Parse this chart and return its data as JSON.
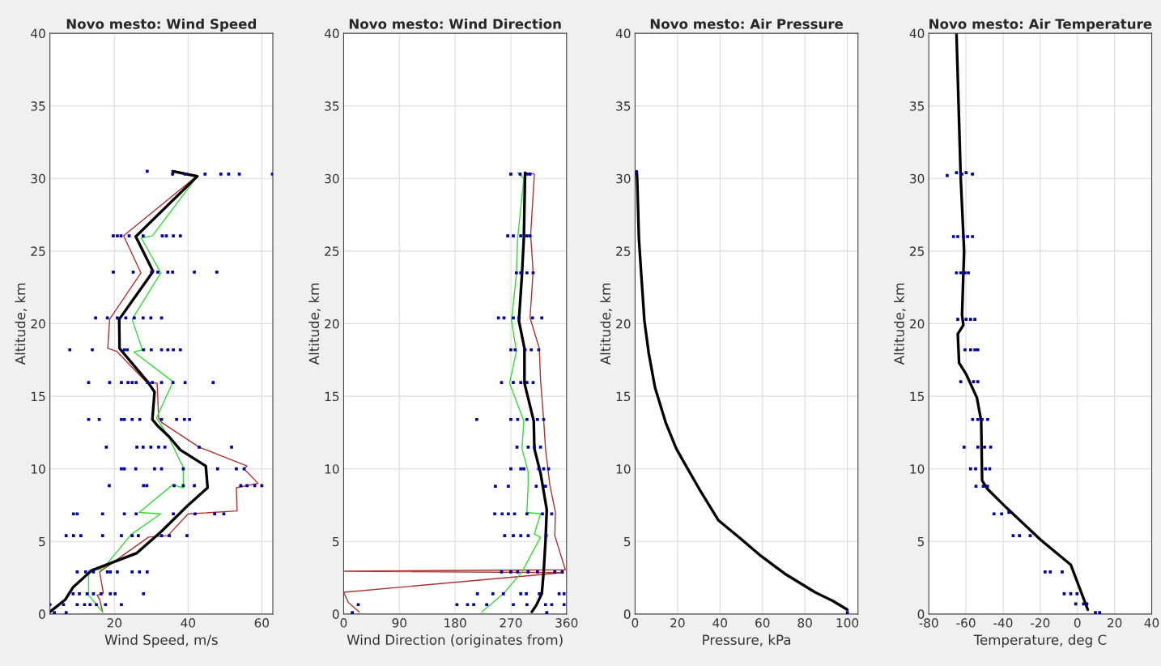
{
  "chart_data": [
    {
      "type": "line",
      "title": "Novo mesto: Wind Speed",
      "xlabel": "Wind Speed, m/s",
      "ylabel": "Altitude, km",
      "xlim": [
        2.5,
        63
      ],
      "xticks": [
        20,
        40,
        60
      ],
      "ylim": [
        0,
        40
      ],
      "yticks": [
        0,
        5,
        10,
        15,
        20,
        25,
        30,
        35,
        40
      ],
      "grid": true,
      "series": [
        {
          "type": "scatter",
          "marker": "square",
          "color": "#0000a0",
          "x": [
            28.9,
            35.8,
            39.2,
            44.6,
            48.9,
            51.0,
            53.9,
            62.9,
            19.7,
            20.8,
            21.8,
            24.0,
            27.8,
            33.0,
            34.1,
            36.0,
            37.9,
            19.7,
            25.1,
            30.1,
            31.8,
            34.5,
            35.8,
            41.7,
            47.8,
            14.9,
            18.1,
            20.8,
            23.1,
            25.4,
            27.8,
            29.9,
            32.8,
            7.9,
            14.0,
            22.7,
            23.5,
            27.9,
            30.0,
            32.8,
            34.5,
            36.0,
            37.9,
            13.0,
            18.7,
            21.9,
            23.7,
            24.8,
            25.9,
            29.0,
            30.3,
            32.8,
            35.9,
            39.2,
            46.8,
            13.0,
            15.9,
            21.9,
            22.7,
            24.8,
            26.9,
            32.8,
            36.9,
            39.0,
            40.4,
            17.8,
            26.1,
            27.8,
            29.9,
            32.0,
            33.7,
            43.0,
            51.8,
            21.9,
            22.7,
            25.8,
            30.9,
            32.8,
            38.7,
            48.0,
            53.1,
            55.2,
            18.6,
            27.9,
            28.8,
            36.2,
            38.7,
            41.7,
            54.3,
            56.0,
            58.1,
            60.0,
            8.9,
            9.9,
            16.8,
            22.7,
            25.9,
            36.0,
            41.9,
            47.2,
            49.7,
            6.9,
            8.9,
            10.9,
            16.8,
            21.9,
            24.8,
            26.5,
            32.8,
            34.9,
            39.7,
            9.9,
            12.2,
            14.3,
            18.1,
            18.9,
            20.8,
            24.8,
            26.8,
            28.9,
            8.8,
            10.5,
            12.6,
            14.3,
            16.4,
            18.9,
            20.2,
            27.9,
            2.5,
            6.2,
            9.9,
            11.9,
            13.4,
            15.1,
            17.6,
            21.9,
            3.7,
            6.9
          ],
          "values": [
            30.5,
            30.3,
            30.3,
            30.3,
            30.3,
            30.3,
            30.3,
            30.3,
            26.05,
            26.05,
            26.05,
            26.05,
            26.05,
            26.05,
            26.05,
            26.05,
            26.05,
            23.55,
            23.55,
            23.55,
            23.55,
            23.55,
            23.55,
            23.55,
            23.55,
            20.4,
            20.4,
            20.4,
            20.4,
            20.4,
            20.4,
            20.4,
            20.4,
            18.2,
            18.2,
            18.2,
            18.2,
            18.2,
            18.2,
            18.2,
            18.2,
            18.2,
            18.2,
            15.95,
            15.95,
            15.95,
            15.95,
            15.95,
            15.95,
            15.95,
            15.95,
            15.95,
            15.95,
            15.95,
            15.95,
            13.4,
            13.4,
            13.4,
            13.4,
            13.4,
            13.4,
            13.4,
            13.4,
            13.4,
            13.4,
            11.5,
            11.5,
            11.5,
            11.5,
            11.5,
            11.5,
            11.5,
            11.5,
            10.0,
            10.0,
            10.0,
            10.0,
            10.0,
            10.0,
            10.0,
            10.0,
            10.0,
            8.85,
            8.85,
            8.85,
            8.85,
            8.85,
            8.85,
            8.85,
            8.85,
            8.85,
            8.85,
            6.9,
            6.9,
            6.9,
            6.9,
            6.9,
            6.9,
            6.9,
            6.9,
            6.9,
            5.4,
            5.4,
            5.4,
            5.4,
            5.4,
            5.4,
            5.4,
            5.4,
            5.4,
            5.4,
            2.9,
            2.9,
            2.9,
            2.9,
            2.9,
            2.9,
            2.9,
            2.9,
            2.9,
            1.4,
            1.4,
            1.4,
            1.4,
            1.4,
            1.4,
            1.4,
            1.4,
            0.65,
            0.65,
            0.65,
            0.65,
            0.65,
            0.65,
            0.65,
            0.65,
            0.1,
            0.1
          ]
        },
        {
          "color": "#b03030",
          "x": [
            35.8,
            42.5,
            22.5,
            27.2,
            18.7,
            18.2,
            20.6,
            28.6,
            31.6,
            32.0,
            32.8,
            43.0,
            56.0,
            55.2,
            59.0,
            53.1,
            53.3,
            40.0,
            34.5,
            29.3,
            16.0,
            17.0,
            15.3,
            16.0,
            16.8
          ],
          "values": [
            30.55,
            30.2,
            26.05,
            23.5,
            20.3,
            18.3,
            18.1,
            16.0,
            15.9,
            13.5,
            13.2,
            11.5,
            10.2,
            10.0,
            9.0,
            8.7,
            7.1,
            6.9,
            5.4,
            5.3,
            2.9,
            1.45,
            1.3,
            1.0,
            0.15
          ]
        },
        {
          "color": "#33dd33",
          "x": [
            36.2,
            42.5,
            30.3,
            27.3,
            32.6,
            24.8,
            27.6,
            25.3,
            35.9,
            31.4,
            34.5,
            38.7,
            38.7,
            35.8,
            26.7,
            32.6,
            24.6,
            16.8,
            13.0,
            13.0,
            16.8
          ],
          "values": [
            30.5,
            30.15,
            26.05,
            25.9,
            23.5,
            20.3,
            18.2,
            18.05,
            16.0,
            13.5,
            12.3,
            10.1,
            8.7,
            8.9,
            7.0,
            6.9,
            5.5,
            3.1,
            3.0,
            1.3,
            0.15
          ]
        },
        {
          "color": "#000000",
          "x": [
            35.8,
            42.5,
            25.8,
            30.5,
            21.3,
            21.4,
            29.0,
            30.9,
            30.3,
            31.6,
            34.9,
            37.9,
            44.8,
            45.3,
            39.6,
            32.8,
            26.1,
            13.8,
            8.8,
            6.7,
            2.5
          ],
          "values": [
            30.5,
            30.15,
            26.0,
            23.6,
            20.3,
            18.3,
            16.0,
            15.3,
            13.4,
            13.0,
            12.2,
            11.3,
            10.2,
            8.7,
            7.4,
            5.7,
            4.2,
            3.0,
            1.85,
            1.0,
            0.15
          ]
        }
      ]
    },
    {
      "type": "line",
      "title": "Novo mesto: Wind Direction",
      "xlabel": "Wind Direction (originates from)",
      "ylabel": "Altitude, km",
      "xlim": [
        0,
        360
      ],
      "xticks": [
        0,
        90,
        180,
        270,
        360
      ],
      "ylim": [
        0,
        40
      ],
      "yticks": [
        0,
        5,
        10,
        15,
        20,
        25,
        30,
        35,
        40
      ],
      "grid": true,
      "series": [
        {
          "type": "scatter",
          "marker": "square",
          "color": "#0000a0",
          "x": [
            270,
            285,
            296,
            301,
            265,
            274,
            286,
            296,
            301,
            279,
            286,
            296,
            306,
            250,
            259,
            274,
            283,
            305,
            320,
            270,
            277,
            293,
            303,
            315,
            255,
            274,
            286,
            296,
            306,
            215,
            270,
            281,
            296,
            313,
            323,
            280,
            298,
            308,
            318,
            270,
            286,
            291,
            315,
            323,
            331,
            245,
            266,
            311,
            326,
            244,
            256,
            266,
            276,
            296,
            321,
            336,
            260,
            274,
            286,
            298,
            327,
            255,
            270,
            281,
            298,
            313,
            341,
            353,
            216,
            241,
            258,
            286,
            295,
            316,
            348,
            356,
            23.6,
            183,
            200,
            210,
            231,
            274,
            296,
            326,
            336,
            356,
            14,
            328
          ],
          "values": [
            30.3,
            30.3,
            30.3,
            30.3,
            26.05,
            26.05,
            26.05,
            26.05,
            26.05,
            23.5,
            23.5,
            23.5,
            23.5,
            20.4,
            20.4,
            20.4,
            20.4,
            20.4,
            20.4,
            18.2,
            18.2,
            18.2,
            18.2,
            18.2,
            15.95,
            15.95,
            15.95,
            15.95,
            15.95,
            13.4,
            13.4,
            13.4,
            13.4,
            13.4,
            13.4,
            11.5,
            11.5,
            11.5,
            11.5,
            10.0,
            10.0,
            10.0,
            10.0,
            10.0,
            10.0,
            8.8,
            8.8,
            8.8,
            8.8,
            6.9,
            6.9,
            6.9,
            6.9,
            6.9,
            6.9,
            6.9,
            5.4,
            5.4,
            5.4,
            5.4,
            5.4,
            2.9,
            2.9,
            2.9,
            2.9,
            2.9,
            2.9,
            2.9,
            1.4,
            1.4,
            1.4,
            1.4,
            1.4,
            1.4,
            1.4,
            1.4,
            0.65,
            0.65,
            0.65,
            0.65,
            0.65,
            0.65,
            0.65,
            0.65,
            0.65,
            0.65,
            0.1,
            0.1
          ]
        },
        {
          "color": "#b03030",
          "x": [
            293,
            308,
            302,
            306,
            301,
            316,
            318,
            323,
            326,
            333,
            342,
            341,
            358,
            0,
            355,
            0,
            7.5,
            25
          ],
          "values": [
            30.4,
            30.3,
            26.1,
            23.6,
            20.4,
            18.3,
            16.1,
            13.4,
            11.4,
            8.9,
            7.0,
            5.4,
            3.05,
            2.95,
            2.85,
            1.5,
            0.8,
            0.15
          ]
        },
        {
          "color": "#33dd33",
          "x": [
            281,
            291,
            281,
            279,
            271,
            279,
            268,
            291,
            288,
            298,
            298,
            296,
            318,
            308,
            318,
            288,
            258,
            223
          ],
          "values": [
            30.4,
            30.0,
            25.9,
            23.4,
            20.2,
            18.1,
            15.9,
            13.3,
            11.4,
            9.8,
            8.9,
            7.0,
            6.9,
            5.5,
            5.3,
            2.9,
            1.4,
            0.15
          ]
        },
        {
          "color": "#000000",
          "x": [
            293,
            291,
            288,
            283,
            292,
            292,
            307,
            308,
            318,
            328,
            326,
            323,
            320,
            311,
            304
          ],
          "values": [
            30.4,
            25.9,
            23.4,
            20.2,
            18.3,
            15.9,
            13.3,
            11.4,
            9.7,
            7.2,
            5.05,
            2.9,
            1.4,
            0.6,
            0.15
          ]
        }
      ]
    },
    {
      "type": "line",
      "title": "Novo mesto: Air Pressure",
      "xlabel": "Pressure, kPa",
      "ylabel": "Altitude, km",
      "xlim": [
        0,
        105
      ],
      "xticks": [
        0,
        20,
        40,
        60,
        80,
        100
      ],
      "ylim": [
        0,
        40
      ],
      "yticks": [
        0,
        5,
        10,
        15,
        20,
        25,
        30,
        35,
        40
      ],
      "grid": true,
      "series": [
        {
          "type": "scatter",
          "marker": "square",
          "color": "#0000a0",
          "x": [
            100,
            0.6
          ],
          "values": [
            0.1,
            30.4
          ]
        },
        {
          "color": "#000000",
          "x": [
            100,
            93.2,
            84.8,
            70.3,
            59.3,
            49.7,
            39.3,
            30.3,
            24.4,
            19.4,
            14.4,
            9.4,
            6.4,
            4.4,
            3.0,
            1.8,
            1.0,
            0.8
          ],
          "values": [
            0.3,
            0.9,
            1.5,
            2.8,
            4.0,
            5.2,
            6.45,
            8.6,
            10.1,
            11.4,
            13.2,
            15.6,
            18.0,
            20.2,
            23.2,
            25.9,
            30.0,
            30.5
          ]
        }
      ]
    },
    {
      "type": "line",
      "title": "Novo mesto: Air Temperature",
      "xlabel": "Temperature, deg C",
      "ylabel": "Altitude, km",
      "xlim": [
        -80,
        40
      ],
      "xticks": [
        -80,
        -60,
        -40,
        -20,
        0,
        20,
        40
      ],
      "ylim": [
        0,
        40
      ],
      "yticks": [
        0,
        5,
        10,
        15,
        20,
        25,
        30,
        35,
        40
      ],
      "grid": true,
      "series": [
        {
          "type": "scatter",
          "marker": "square",
          "color": "#0000a0",
          "x": [
            -70.1,
            -65.1,
            -62.2,
            -59.9,
            -56.5,
            -66.7,
            -64.4,
            -61.4,
            -59.1,
            -56.5,
            -65.1,
            -62.8,
            -60.5,
            -58.7,
            -64.4,
            -59.9,
            -57.5,
            -55.2,
            -60.5,
            -57.5,
            -55.2,
            -53.6,
            -62.8,
            -55.9,
            -53.6,
            -56.4,
            -53.6,
            -51.3,
            -48.3,
            -61.0,
            -53.6,
            -50.0,
            -46.7,
            -57.5,
            -54.8,
            -49.5,
            -47.2,
            -54.6,
            -50.7,
            -48.4,
            -44.9,
            -40.8,
            -36.9,
            -34.6,
            -31.2,
            -25.4,
            -17.4,
            -14.6,
            -8.2,
            -7.1,
            -3.6,
            -0.2,
            -0.9,
            3.3,
            5.1,
            9.7,
            12.0
          ],
          "values": [
            30.2,
            30.4,
            30.3,
            30.4,
            30.3,
            26.0,
            26.0,
            26.0,
            26.0,
            26.0,
            23.5,
            23.5,
            23.5,
            23.5,
            20.3,
            20.3,
            20.3,
            20.3,
            18.2,
            18.2,
            18.2,
            18.2,
            16.0,
            16.0,
            16.0,
            13.4,
            13.4,
            13.4,
            13.4,
            11.5,
            11.5,
            11.5,
            11.5,
            10.0,
            10.0,
            10.0,
            10.0,
            8.8,
            8.8,
            8.8,
            6.9,
            6.9,
            7.0,
            5.4,
            5.4,
            5.4,
            2.9,
            2.9,
            2.9,
            1.4,
            1.4,
            1.4,
            0.7,
            0.7,
            0.7,
            0.1,
            0.1
          ]
        },
        {
          "color": "#000000",
          "x": [
            -65.1,
            -62.8,
            -61.0,
            -62.1,
            -61.4,
            -64.4,
            -63.7,
            -59.8,
            -54.1,
            -51.8,
            -51.3,
            -48.3,
            -38.0,
            -19.7,
            -3.6,
            5.6
          ],
          "values": [
            40,
            30,
            25,
            20.6,
            19.9,
            19.3,
            17.3,
            16.5,
            14.9,
            13.3,
            9.2,
            8.6,
            7.3,
            5.1,
            3.4,
            0.3
          ]
        }
      ]
    }
  ]
}
